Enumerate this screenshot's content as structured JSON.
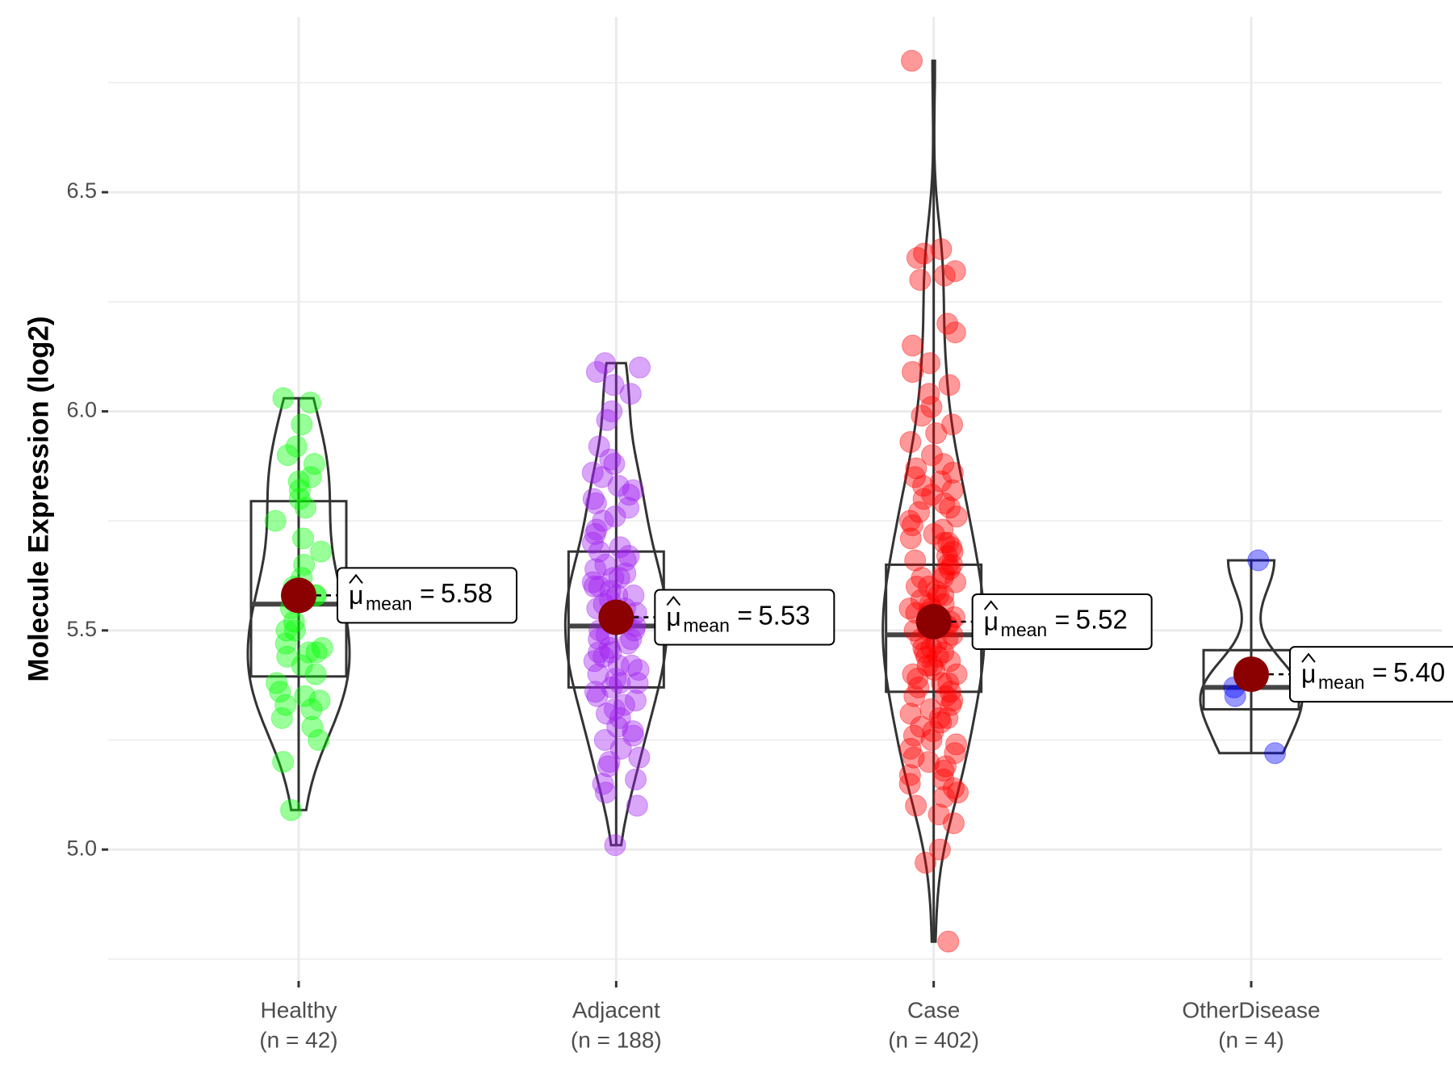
{
  "chart_data": {
    "type": "violin",
    "y_label": "Molecule Expression (log2)",
    "ylim": [
      4.7,
      6.9
    ],
    "yticks": [
      {
        "value": 5.0,
        "label": "5.0"
      },
      {
        "value": 5.5,
        "label": "5.5"
      },
      {
        "value": 6.0,
        "label": "6.0"
      },
      {
        "value": 6.5,
        "label": "6.5"
      }
    ],
    "minor_yticks": [
      4.75,
      5.25,
      5.75,
      6.25,
      6.75
    ],
    "grid": true,
    "mean_symbol": "μ",
    "mean_subscript": "mean",
    "mean_operator": "=",
    "mean_color": "#8b0000",
    "groups": [
      {
        "name": "Healthy",
        "n_label": "(n = 42)",
        "color": "#00ff00",
        "q1": 5.395,
        "median": 5.56,
        "q3": 5.795,
        "whisker_low": 5.09,
        "whisker_high": 6.03,
        "mean": 5.58,
        "mean_label": "5.58",
        "points": [
          6.03,
          6.02,
          5.97,
          5.92,
          5.9,
          5.88,
          5.85,
          5.84,
          5.82,
          5.8,
          5.75,
          5.71,
          5.65,
          5.6,
          5.58,
          5.55,
          5.5,
          5.47,
          5.46,
          5.45,
          5.45,
          5.4,
          5.38,
          5.35,
          5.34,
          5.33,
          5.32,
          5.3,
          5.25,
          5.2,
          5.09,
          5.62,
          5.57,
          5.52,
          5.42,
          5.36,
          5.78,
          5.68,
          5.5,
          5.44,
          5.28,
          5.58
        ]
      },
      {
        "name": "Adjacent",
        "n_label": "(n = 188)",
        "color": "#a020f0",
        "q1": 5.37,
        "median": 5.51,
        "q3": 5.68,
        "whisker_low": 5.01,
        "whisker_high": 6.11,
        "mean": 5.53,
        "mean_label": "5.53",
        "points": [
          6.11,
          6.1,
          6.09,
          6.06,
          6.04,
          6.0,
          5.98,
          5.92,
          5.89,
          5.88,
          5.86,
          5.85,
          5.83,
          5.82,
          5.81,
          5.8,
          5.79,
          5.78,
          5.76,
          5.75,
          5.73,
          5.72,
          5.7,
          5.69,
          5.68,
          5.67,
          5.66,
          5.65,
          5.64,
          5.63,
          5.62,
          5.61,
          5.6,
          5.59,
          5.58,
          5.57,
          5.56,
          5.55,
          5.54,
          5.53,
          5.52,
          5.51,
          5.5,
          5.49,
          5.48,
          5.47,
          5.46,
          5.45,
          5.44,
          5.43,
          5.42,
          5.41,
          5.4,
          5.39,
          5.38,
          5.37,
          5.36,
          5.35,
          5.34,
          5.33,
          5.32,
          5.31,
          5.3,
          5.28,
          5.27,
          5.26,
          5.25,
          5.23,
          5.21,
          5.2,
          5.19,
          5.16,
          5.15,
          5.13,
          5.1,
          5.01,
          5.55,
          5.5,
          5.45,
          5.6,
          5.52,
          5.48,
          5.42,
          5.58,
          5.62,
          5.38
        ]
      },
      {
        "name": "Case",
        "n_label": "(n = 402)",
        "color": "#ff0000",
        "q1": 5.36,
        "median": 5.49,
        "q3": 5.65,
        "whisker_low": 4.79,
        "whisker_high": 6.8,
        "mean": 5.52,
        "mean_label": "5.52",
        "points": [
          6.8,
          6.37,
          6.36,
          6.35,
          6.32,
          6.31,
          6.3,
          6.2,
          6.18,
          6.15,
          6.11,
          6.09,
          6.06,
          6.04,
          6.01,
          5.99,
          5.97,
          5.95,
          5.93,
          5.9,
          5.88,
          5.87,
          5.86,
          5.85,
          5.84,
          5.83,
          5.82,
          5.81,
          5.8,
          5.79,
          5.78,
          5.77,
          5.76,
          5.75,
          5.74,
          5.73,
          5.72,
          5.71,
          5.7,
          5.69,
          5.68,
          5.67,
          5.66,
          5.65,
          5.64,
          5.63,
          5.62,
          5.61,
          5.6,
          5.59,
          5.58,
          5.57,
          5.56,
          5.55,
          5.54,
          5.53,
          5.52,
          5.51,
          5.5,
          5.49,
          5.48,
          5.47,
          5.46,
          5.45,
          5.44,
          5.43,
          5.42,
          5.41,
          5.4,
          5.39,
          5.38,
          5.37,
          5.36,
          5.35,
          5.34,
          5.33,
          5.32,
          5.31,
          5.3,
          5.29,
          5.28,
          5.27,
          5.26,
          5.25,
          5.24,
          5.23,
          5.22,
          5.21,
          5.2,
          5.19,
          5.18,
          5.17,
          5.16,
          5.15,
          5.14,
          5.13,
          5.12,
          5.1,
          5.08,
          5.06,
          5.0,
          4.97,
          4.79,
          5.5,
          5.45,
          5.55,
          5.6,
          5.4,
          5.35,
          5.48,
          5.52,
          5.58,
          5.42,
          5.62,
          5.38,
          5.65,
          5.3,
          5.7,
          5.46,
          5.54,
          5.44,
          5.56
        ]
      },
      {
        "name": "OtherDisease",
        "n_label": "(n = 4)",
        "color": "#0000ff",
        "q1": 5.32,
        "median": 5.37,
        "q3": 5.455,
        "whisker_low": 5.22,
        "whisker_high": 5.66,
        "mean": 5.4,
        "mean_label": "5.40",
        "points": [
          5.66,
          5.37,
          5.35,
          5.22
        ]
      }
    ]
  }
}
